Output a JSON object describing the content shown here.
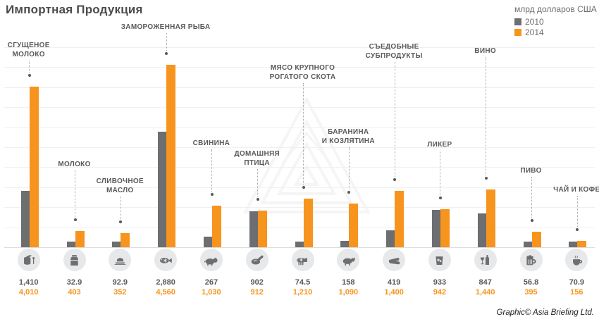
{
  "title": "Импортная Продукция",
  "legend": {
    "unit": "млрд долларов США",
    "series": [
      {
        "label": "2010",
        "color": "#6d6e71"
      },
      {
        "label": "2014",
        "color": "#f7941e"
      }
    ]
  },
  "credit": "Graphic© Asia Briefing Ltd.",
  "colors": {
    "bar_2010": "#6d6e71",
    "bar_2014": "#f7941e",
    "label_text": "#58595b",
    "icon_circle_bg": "#e7e8e9",
    "icon_glyph": "#6d6e71",
    "gridline": "#f0f0f1"
  },
  "chart_data": {
    "type": "bar",
    "title": "Импортная Продукция",
    "ylabel": "млрд долларов США",
    "series_names": [
      "2010",
      "2014"
    ],
    "ylim": [
      0,
      5000
    ],
    "gridline_step": 500,
    "grid": true,
    "legend_position": "top-right",
    "categories": [
      {
        "name": "СГУЩЕНОЕ МОЛОКО",
        "name_lines": [
          "СГУЩЕНОЕ",
          "МОЛОКО"
        ],
        "icon": "condensed-milk",
        "v2010": 1410,
        "v2014": 4010,
        "label2010": "1,410",
        "label2014": "4,010",
        "label_top": 58
      },
      {
        "name": "МОЛОКО",
        "name_lines": [
          "МОЛОКО"
        ],
        "icon": "milk-carton",
        "v2010": 32.9,
        "v2014": 403,
        "label2010": "32.9",
        "label2014": "403",
        "label_top": 227
      },
      {
        "name": "СЛИВОЧНОЕ МАСЛО",
        "name_lines": [
          "СЛИВОЧНОЕ",
          "МАСЛО"
        ],
        "icon": "butter",
        "v2010": 92.9,
        "v2014": 352,
        "label2010": "92.9",
        "label2014": "352",
        "label_top": 251
      },
      {
        "name": "ЗАМОРОЖЕННАЯ РЫБА",
        "name_lines": [
          "ЗАМОРОЖЕННАЯ РЫБА"
        ],
        "icon": "frozen-fish",
        "v2010": 2880,
        "v2014": 4560,
        "label2010": "2,880",
        "label2014": "4,560",
        "label_top": 32
      },
      {
        "name": "СВИНИНА",
        "name_lines": [
          "СВИНИНА"
        ],
        "icon": "pig",
        "v2010": 267,
        "v2014": 1030,
        "label2010": "267",
        "label2014": "1,030",
        "label_top": 197
      },
      {
        "name": "ДОМАШНЯЯ ПТИЦА",
        "name_lines": [
          "ДОМАШНЯЯ",
          "ПТИЦА"
        ],
        "icon": "poultry",
        "v2010": 902,
        "v2014": 912,
        "label2010": "902",
        "label2014": "912",
        "label_top": 212
      },
      {
        "name": "МЯСО КРУПНОГО РОГАТОГО СКОТА",
        "name_lines": [
          "МЯСО КРУПНОГО",
          "РОГАТОГО СКОТА"
        ],
        "icon": "beef-cow",
        "v2010": 74.5,
        "v2014": 1210,
        "label2010": "74.5",
        "label2014": "1,210",
        "label_top": 90
      },
      {
        "name": "БАРАНИНА И КОЗЛЯТИНА",
        "name_lines": [
          "БАРАНИНА",
          "И КОЗЛЯТИНА"
        ],
        "icon": "sheep",
        "v2010": 158,
        "v2014": 1090,
        "label2010": "158",
        "label2014": "1,090",
        "label_top": 181
      },
      {
        "name": "СЪЕДОБНЫЕ СУБПРОДУКТЫ",
        "name_lines": [
          "СЪЕДОБНЫЕ",
          "СУБПРОДУКТЫ"
        ],
        "icon": "offal",
        "v2010": 419,
        "v2014": 1400,
        "label2010": "419",
        "label2014": "1,400",
        "label_top": 60
      },
      {
        "name": "ЛИКЕР",
        "name_lines": [
          "ЛИКЕР"
        ],
        "icon": "liquor-glass",
        "v2010": 933,
        "v2014": 942,
        "label2010": "933",
        "label2014": "942",
        "label_top": 199
      },
      {
        "name": "ВИНО",
        "name_lines": [
          "ВИНО"
        ],
        "icon": "wine",
        "v2010": 847,
        "v2014": 1440,
        "label2010": "847",
        "label2014": "1,440",
        "label_top": 66
      },
      {
        "name": "ПИВО",
        "name_lines": [
          "ПИВО"
        ],
        "icon": "beer-mug",
        "v2010": 56.8,
        "v2014": 395,
        "label2010": "56.8",
        "label2014": "395",
        "label_top": 236
      },
      {
        "name": "ЧАЙ И КОФЕ",
        "name_lines": [
          "ЧАЙ И КОФЕ"
        ],
        "icon": "tea-coffee",
        "v2010": 70.9,
        "v2014": 156,
        "label2010": "70.9",
        "label2014": "156",
        "label_top": 263
      }
    ]
  }
}
